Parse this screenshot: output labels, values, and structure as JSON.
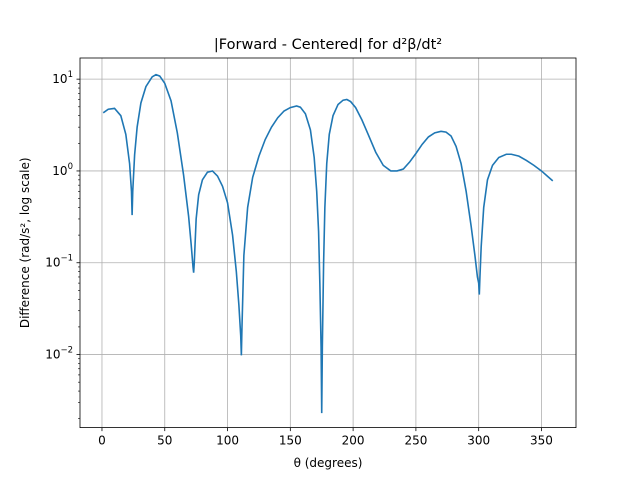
{
  "chart_data": {
    "type": "line",
    "title": "|Forward - Centered| for d²β/dt²",
    "xlabel": "θ (degrees)",
    "ylabel": "Difference (rad/s², log scale)",
    "xlim": [
      -17.5,
      377.5
    ],
    "ylim": [
      0.0016,
      17
    ],
    "yscale": "log",
    "grid": true,
    "x_ticks": [
      {
        "value": 0,
        "label": "0"
      },
      {
        "value": 50,
        "label": "50"
      },
      {
        "value": 100,
        "label": "100"
      },
      {
        "value": 150,
        "label": "150"
      },
      {
        "value": 200,
        "label": "200"
      },
      {
        "value": 250,
        "label": "250"
      },
      {
        "value": 300,
        "label": "300"
      },
      {
        "value": 350,
        "label": "350"
      }
    ],
    "y_ticks": [
      {
        "value": 0.01,
        "base": "10",
        "exp": "−2"
      },
      {
        "value": 0.1,
        "base": "10",
        "exp": "−1"
      },
      {
        "value": 1,
        "base": "10",
        "exp": "0"
      },
      {
        "value": 10,
        "base": "10",
        "exp": "1"
      }
    ],
    "line_color": "#1f77b4",
    "series": [
      {
        "x": [
          1,
          5,
          10,
          15,
          19,
          22,
          23.5,
          24,
          24.5,
          26,
          28,
          31,
          35,
          40,
          43,
          46,
          50,
          55,
          60,
          65,
          69,
          71,
          72.5,
          73,
          73.5,
          75,
          77,
          80,
          84,
          88,
          92,
          96,
          100,
          104,
          107,
          109,
          110.5,
          111,
          111.5,
          113,
          116,
          120,
          125,
          130,
          135,
          140,
          145,
          150,
          155,
          158,
          162,
          166,
          169,
          171,
          172.5,
          173.5,
          174.5,
          175,
          175.5,
          176.5,
          177.5,
          179,
          181,
          184,
          188,
          192,
          195,
          198,
          202,
          207,
          212,
          218,
          224,
          230,
          235,
          240,
          245,
          250,
          255,
          260,
          265,
          270,
          274,
          278,
          282,
          286,
          290,
          294,
          297,
          299,
          300,
          300.5,
          301,
          302,
          304,
          307,
          311,
          316,
          322,
          326,
          332,
          338,
          344,
          350,
          355,
          359
        ],
        "y": [
          4.3,
          4.7,
          4.8,
          4.0,
          2.5,
          1.2,
          0.6,
          0.33,
          0.6,
          1.5,
          3.0,
          5.5,
          8.3,
          10.6,
          11.2,
          10.8,
          9.0,
          5.8,
          2.6,
          0.9,
          0.32,
          0.16,
          0.09,
          0.078,
          0.1,
          0.3,
          0.55,
          0.8,
          0.97,
          1.0,
          0.88,
          0.68,
          0.45,
          0.2,
          0.08,
          0.035,
          0.016,
          0.0098,
          0.02,
          0.12,
          0.4,
          0.85,
          1.45,
          2.2,
          3.0,
          3.8,
          4.5,
          4.9,
          5.1,
          4.95,
          4.2,
          2.8,
          1.4,
          0.6,
          0.22,
          0.06,
          0.012,
          0.0023,
          0.012,
          0.1,
          0.4,
          1.2,
          2.5,
          4.0,
          5.3,
          5.9,
          6.0,
          5.7,
          4.9,
          3.6,
          2.5,
          1.6,
          1.15,
          1.0,
          1.0,
          1.05,
          1.25,
          1.55,
          1.95,
          2.35,
          2.6,
          2.7,
          2.65,
          2.4,
          1.85,
          1.2,
          0.6,
          0.25,
          0.12,
          0.07,
          0.06,
          0.045,
          0.07,
          0.15,
          0.4,
          0.8,
          1.15,
          1.4,
          1.52,
          1.52,
          1.45,
          1.3,
          1.15,
          1.0,
          0.87,
          0.78
        ]
      }
    ]
  }
}
